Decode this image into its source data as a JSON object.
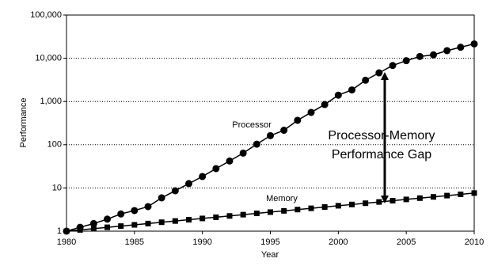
{
  "chart_data": {
    "type": "line",
    "x_label": "Year",
    "y_label": "Performance",
    "log_y": true,
    "grid": true,
    "xlim": [
      1980,
      2010
    ],
    "xticks": [
      1980,
      1985,
      1990,
      1995,
      2000,
      2005,
      2010
    ],
    "ylim": [
      1,
      100000
    ],
    "yticks": [
      1,
      10,
      100,
      {
        "value": 1000,
        "label": "1,000"
      },
      {
        "value": 10000,
        "label": "10,000"
      },
      {
        "value": 100000,
        "label": "100,000"
      }
    ],
    "x": [
      1980,
      1981,
      1982,
      1983,
      1984,
      1985,
      1986,
      1987,
      1988,
      1989,
      1990,
      1991,
      1992,
      1993,
      1994,
      1995,
      1996,
      1997,
      1998,
      1999,
      2000,
      2001,
      2002,
      2003,
      2004,
      2005,
      2006,
      2007,
      2008,
      2009,
      2010
    ],
    "series": [
      {
        "name": "Processor",
        "color": "#000000",
        "marker": "circle",
        "values": [
          1,
          1.23,
          1.5,
          1.9,
          2.5,
          3,
          3.7,
          5.9,
          8.6,
          12.6,
          18.4,
          28,
          42,
          64,
          103,
          162,
          216,
          367,
          560,
          850,
          1400,
          1850,
          3100,
          4600,
          6800,
          8800,
          11000,
          12000,
          15000,
          18000,
          21500
        ]
      },
      {
        "name": "Memory",
        "color": "#000000",
        "marker": "square",
        "values": [
          1,
          1.07,
          1.14,
          1.23,
          1.31,
          1.4,
          1.5,
          1.61,
          1.72,
          1.84,
          1.97,
          2.1,
          2.25,
          2.41,
          2.58,
          2.76,
          2.95,
          3.16,
          3.38,
          3.62,
          3.87,
          4.14,
          4.43,
          4.74,
          5.07,
          5.43,
          5.81,
          6.21,
          6.65,
          7.11,
          7.61
        ]
      }
    ],
    "annotation": [
      "Processor-Memory",
      "Performance Gap"
    ]
  }
}
